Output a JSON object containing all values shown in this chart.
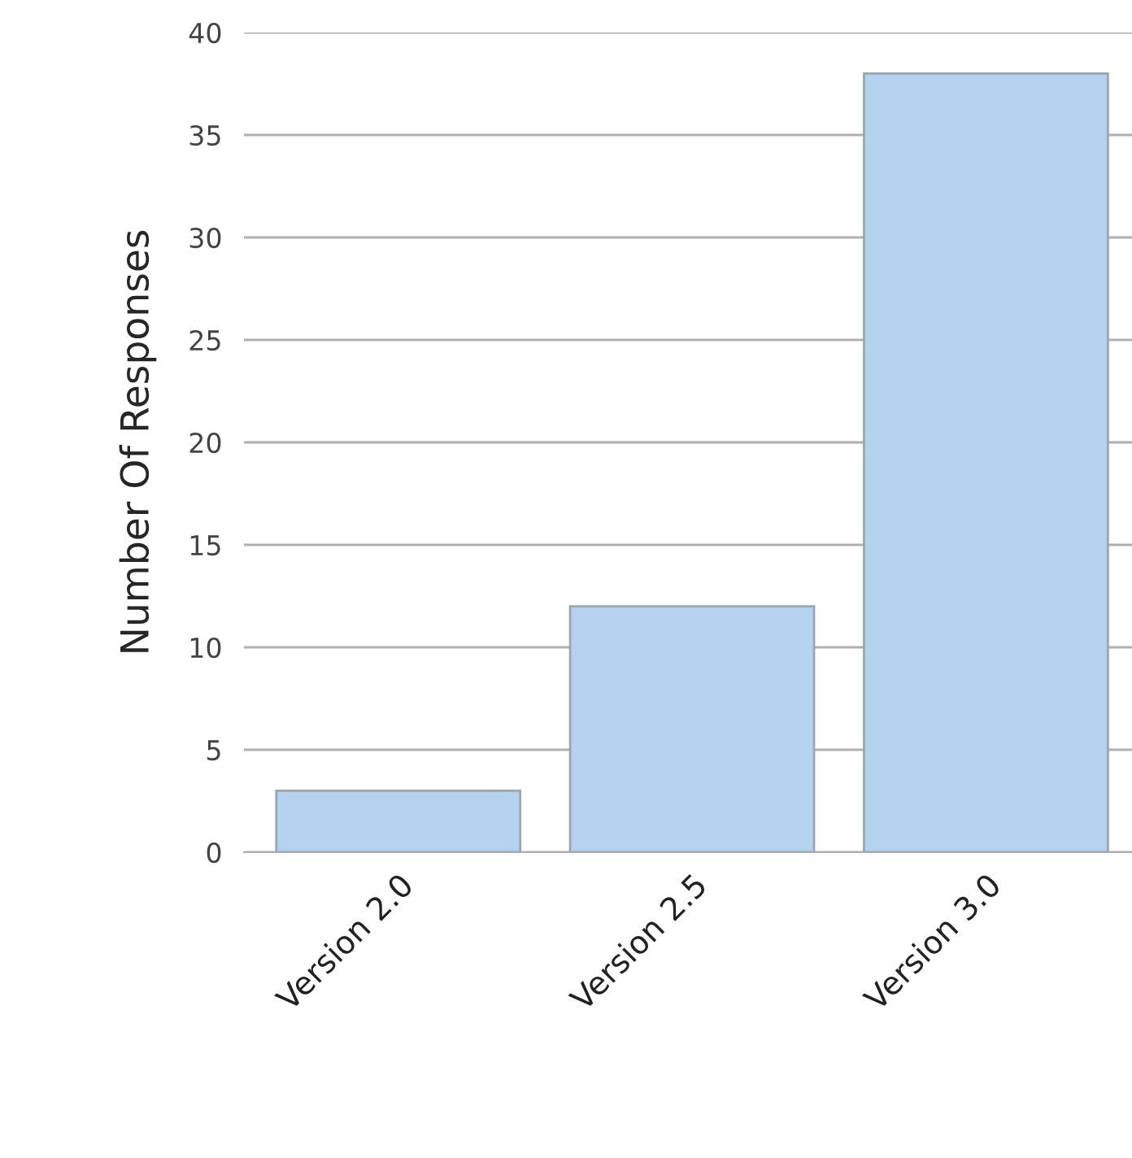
{
  "chart_data": {
    "type": "bar",
    "ylabel": "Number Of Responses",
    "categories": [
      "Version 2.0",
      "Version 2.5",
      "Version 3.0"
    ],
    "values": [
      3,
      12,
      38
    ],
    "color": "#b5d3ee",
    "ylim": [
      0,
      40
    ],
    "yticks": [
      0,
      5,
      10,
      15,
      20,
      25,
      30,
      35,
      40
    ],
    "grid": "y"
  }
}
